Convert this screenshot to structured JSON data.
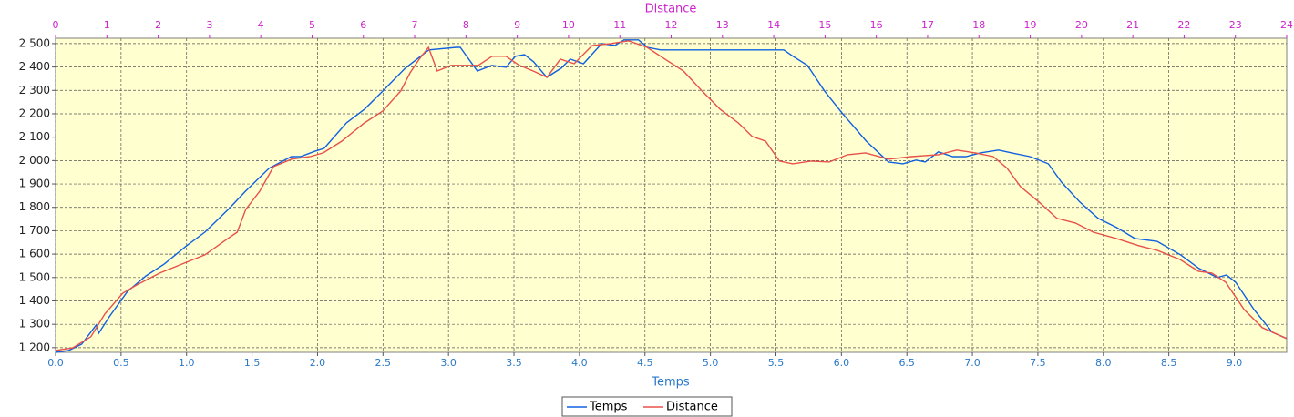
{
  "chart_data": {
    "type": "line",
    "xlabel": "Temps",
    "x2label": "Distance",
    "xlim": [
      0,
      9.4
    ],
    "x2lim": [
      0,
      24
    ],
    "ylim": [
      1180,
      2523
    ],
    "grid": true,
    "legend": "bottom",
    "xticks": [
      {
        "value": 0,
        "label": "0.0"
      },
      {
        "value": 0.5,
        "label": "0.5"
      },
      {
        "value": 1,
        "label": "1.0"
      },
      {
        "value": 1.5,
        "label": "1.5"
      },
      {
        "value": 2,
        "label": "2.0"
      },
      {
        "value": 2.5,
        "label": "2.5"
      },
      {
        "value": 3,
        "label": "3.0"
      },
      {
        "value": 3.5,
        "label": "3.5"
      },
      {
        "value": 4,
        "label": "4.0"
      },
      {
        "value": 4.5,
        "label": "4.5"
      },
      {
        "value": 5,
        "label": "5.0"
      },
      {
        "value": 5.5,
        "label": "5.5"
      },
      {
        "value": 6,
        "label": "6.0"
      },
      {
        "value": 6.5,
        "label": "6.5"
      },
      {
        "value": 7,
        "label": "7.0"
      },
      {
        "value": 7.5,
        "label": "7.5"
      },
      {
        "value": 8,
        "label": "8.0"
      },
      {
        "value": 8.5,
        "label": "8.5"
      },
      {
        "value": 9,
        "label": "9.0"
      }
    ],
    "x2ticks": [
      0,
      1,
      2,
      3,
      4,
      5,
      6,
      7,
      8,
      9,
      10,
      11,
      12,
      13,
      14,
      15,
      16,
      17,
      18,
      19,
      20,
      21,
      22,
      23,
      24
    ],
    "yticks": [
      {
        "value": 1200,
        "label": "1 200"
      },
      {
        "value": 1300,
        "label": "1 300"
      },
      {
        "value": 1400,
        "label": "1 400"
      },
      {
        "value": 1500,
        "label": "1 500"
      },
      {
        "value": 1600,
        "label": "1 600"
      },
      {
        "value": 1700,
        "label": "1 700"
      },
      {
        "value": 1800,
        "label": "1 800"
      },
      {
        "value": 1900,
        "label": "1 900"
      },
      {
        "value": 2000,
        "label": "2 000"
      },
      {
        "value": 2100,
        "label": "2 100"
      },
      {
        "value": 2200,
        "label": "2 200"
      },
      {
        "value": 2300,
        "label": "2 300"
      },
      {
        "value": 2400,
        "label": "2 400"
      },
      {
        "value": 2500,
        "label": "2 500"
      }
    ],
    "series": [
      {
        "name": "Temps",
        "color": "#1060e0",
        "axis": "x",
        "x": [
          0,
          0.1,
          0.2,
          0.31,
          0.33,
          0.41,
          0.55,
          0.69,
          0.83,
          1.0,
          1.14,
          1.32,
          1.45,
          1.63,
          1.8,
          1.87,
          1.98,
          2.05,
          2.22,
          2.36,
          2.5,
          2.67,
          2.85,
          3.06,
          3.09,
          3.22,
          3.33,
          3.44,
          3.51,
          3.58,
          3.65,
          3.75,
          3.86,
          3.93,
          4.03,
          4.17,
          4.27,
          4.34,
          4.45,
          4.52,
          4.62,
          5.14,
          5.56,
          5.63,
          5.74,
          5.87,
          6.01,
          6.19,
          6.36,
          6.47,
          6.57,
          6.64,
          6.74,
          6.85,
          6.95,
          7.06,
          7.2,
          7.3,
          7.44,
          7.58,
          7.68,
          7.82,
          7.96,
          8.1,
          8.24,
          8.41,
          8.59,
          8.73,
          8.87,
          8.94,
          9.01,
          9.15,
          9.29,
          9.4
        ],
        "values": [
          1180,
          1188,
          1215,
          1297,
          1262,
          1332,
          1441,
          1507,
          1558,
          1636,
          1694,
          1792,
          1869,
          1967,
          2017,
          2017,
          2040,
          2052,
          2161,
          2220,
          2298,
          2395,
          2473,
          2484,
          2484,
          2383,
          2407,
          2399,
          2446,
          2453,
          2422,
          2356,
          2395,
          2434,
          2414,
          2500,
          2492,
          2516,
          2516,
          2484,
          2473,
          2473,
          2473,
          2446,
          2407,
          2298,
          2200,
          2083,
          1994,
          1986,
          2002,
          1994,
          2037,
          2017,
          2017,
          2033,
          2045,
          2033,
          2017,
          1986,
          1908,
          1823,
          1753,
          1714,
          1667,
          1655,
          1597,
          1539,
          1500,
          1511,
          1480,
          1363,
          1266,
          1239
        ]
      },
      {
        "name": "Distance",
        "color": "#e8504a",
        "axis": "x2",
        "x": [
          0,
          0.34,
          0.69,
          0.96,
          1.31,
          1.58,
          2.03,
          2.47,
          2.91,
          3.36,
          3.54,
          3.71,
          3.98,
          4.25,
          4.6,
          4.96,
          5.22,
          5.58,
          6.02,
          6.38,
          6.73,
          6.91,
          7.09,
          7.27,
          7.44,
          7.71,
          7.98,
          8.24,
          8.51,
          8.78,
          9.04,
          9.31,
          9.58,
          9.84,
          10.11,
          10.46,
          10.82,
          11.17,
          11.53,
          11.88,
          12.24,
          12.6,
          12.95,
          13.31,
          13.58,
          13.84,
          14.11,
          14.37,
          14.73,
          15.08,
          15.44,
          15.79,
          16.24,
          16.68,
          17.21,
          17.57,
          17.93,
          18.28,
          18.55,
          18.81,
          19.17,
          19.52,
          19.88,
          20.23,
          20.68,
          21.12,
          21.48,
          21.92,
          22.28,
          22.54,
          22.81,
          23.17,
          23.52,
          24
        ],
        "values": [
          1188,
          1200,
          1247,
          1344,
          1433,
          1468,
          1519,
          1558,
          1597,
          1667,
          1694,
          1792,
          1869,
          1974,
          2006,
          2017,
          2033,
          2083,
          2161,
          2212,
          2298,
          2375,
          2434,
          2484,
          2383,
          2407,
          2407,
          2407,
          2446,
          2446,
          2407,
          2383,
          2356,
          2434,
          2414,
          2492,
          2500,
          2512,
          2484,
          2434,
          2383,
          2298,
          2220,
          2161,
          2103,
          2083,
          1998,
          1986,
          1998,
          1994,
          2025,
          2033,
          2006,
          2017,
          2025,
          2045,
          2033,
          2017,
          1967,
          1889,
          1823,
          1753,
          1733,
          1694,
          1667,
          1636,
          1616,
          1577,
          1527,
          1519,
          1480,
          1363,
          1286,
          1239
        ]
      }
    ]
  }
}
